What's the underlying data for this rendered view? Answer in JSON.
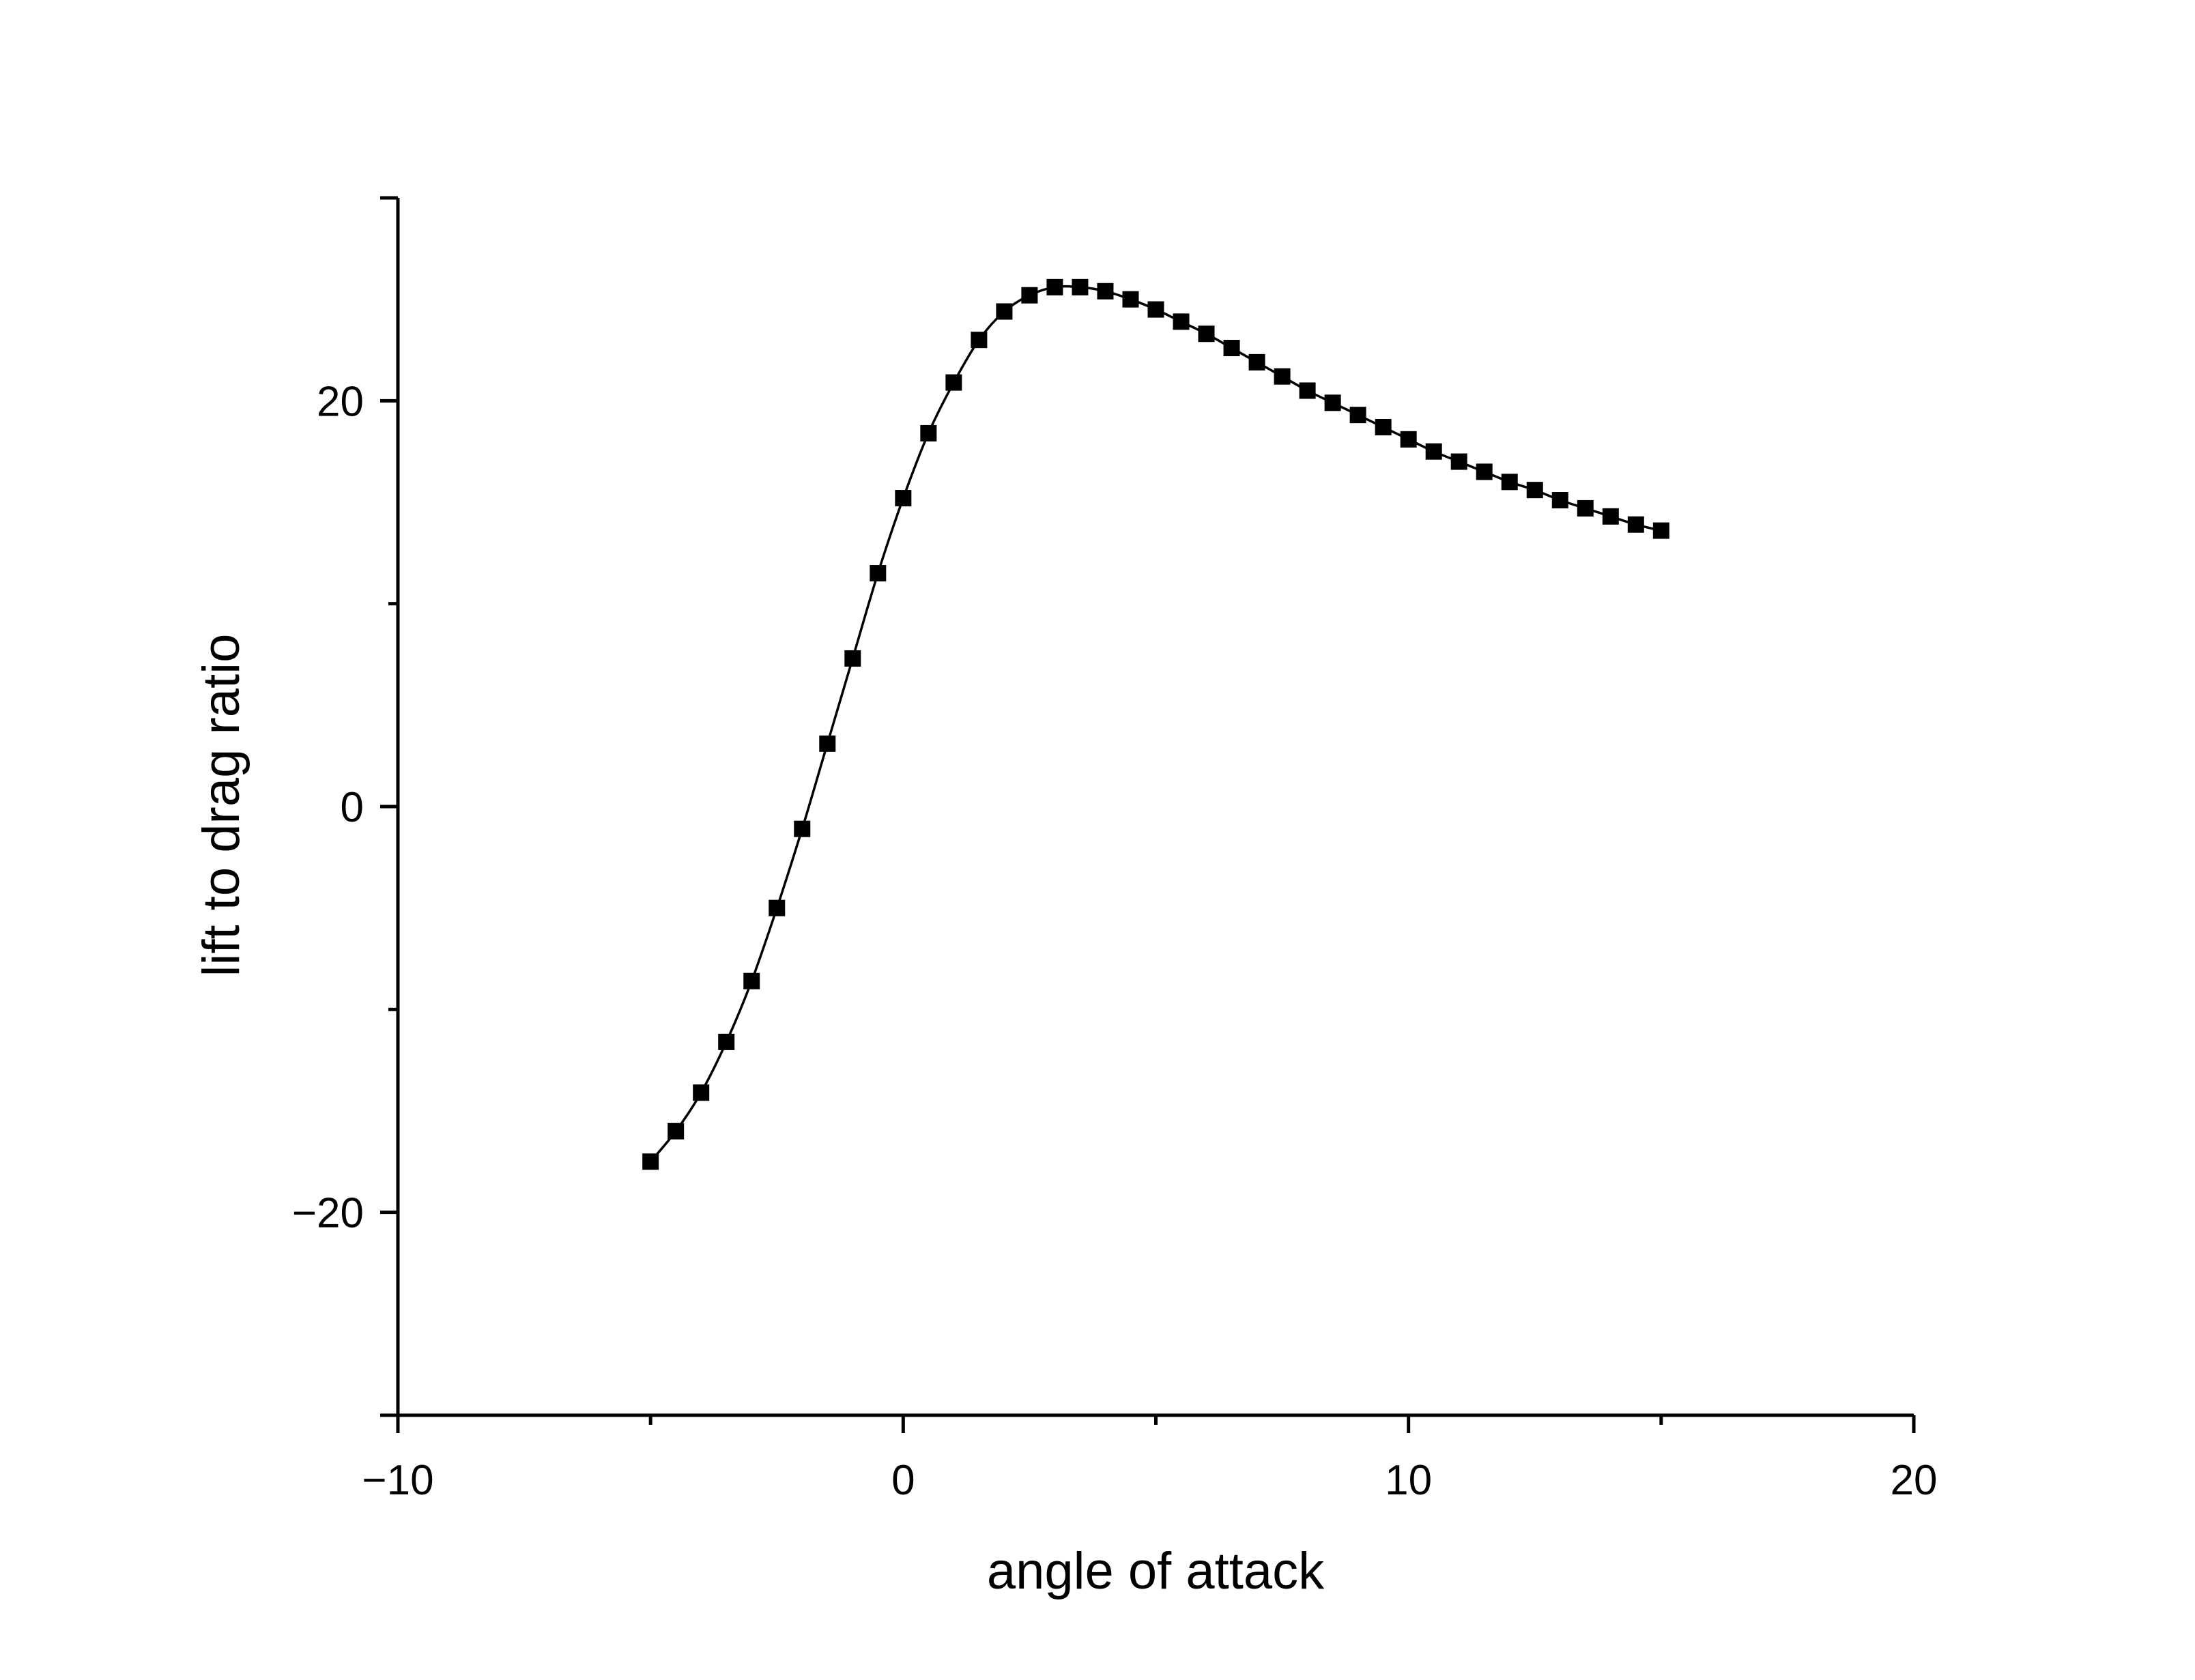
{
  "chart_data": {
    "type": "line",
    "title": "",
    "xlabel": "angle of attack",
    "ylabel": "lift to drag ratio",
    "xlim": [
      -10,
      20
    ],
    "ylim": [
      -30,
      30
    ],
    "x_ticks": [
      -10,
      0,
      10,
      20
    ],
    "x_tick_labels": [
      "−10",
      "0",
      "10",
      "20"
    ],
    "x_minor_ticks": [
      -5,
      5,
      15
    ],
    "y_ticks": [
      -20,
      0,
      20
    ],
    "y_tick_labels": [
      "−20",
      "0",
      "20"
    ],
    "y_minor_ticks": [
      -10,
      10
    ],
    "grid": false,
    "legend": "none",
    "series": [
      {
        "marker": "square",
        "color": "#000000",
        "x": [
          -5,
          -4.5,
          -4,
          -3.5,
          -3,
          -2.5,
          -2,
          -1.5,
          -1,
          -0.5,
          0,
          0.5,
          1,
          1.5,
          2,
          2.5,
          3,
          3.5,
          4,
          4.5,
          5,
          5.5,
          6,
          6.5,
          7,
          7.5,
          8,
          8.5,
          9,
          9.5,
          10,
          10.5,
          11,
          11.5,
          12,
          12.5,
          13,
          13.5,
          14,
          14.5,
          15
        ],
        "y": [
          -17.5,
          -16.0,
          -14.1,
          -11.6,
          -8.6,
          -5.0,
          -1.1,
          3.1,
          7.3,
          11.5,
          15.2,
          18.4,
          20.9,
          23.0,
          24.4,
          25.2,
          25.6,
          25.6,
          25.4,
          25.0,
          24.5,
          23.9,
          23.3,
          22.6,
          21.9,
          21.2,
          20.5,
          19.9,
          19.3,
          18.7,
          18.1,
          17.5,
          17.0,
          16.5,
          16.0,
          15.6,
          15.1,
          14.7,
          14.3,
          13.9,
          13.6
        ]
      }
    ]
  }
}
